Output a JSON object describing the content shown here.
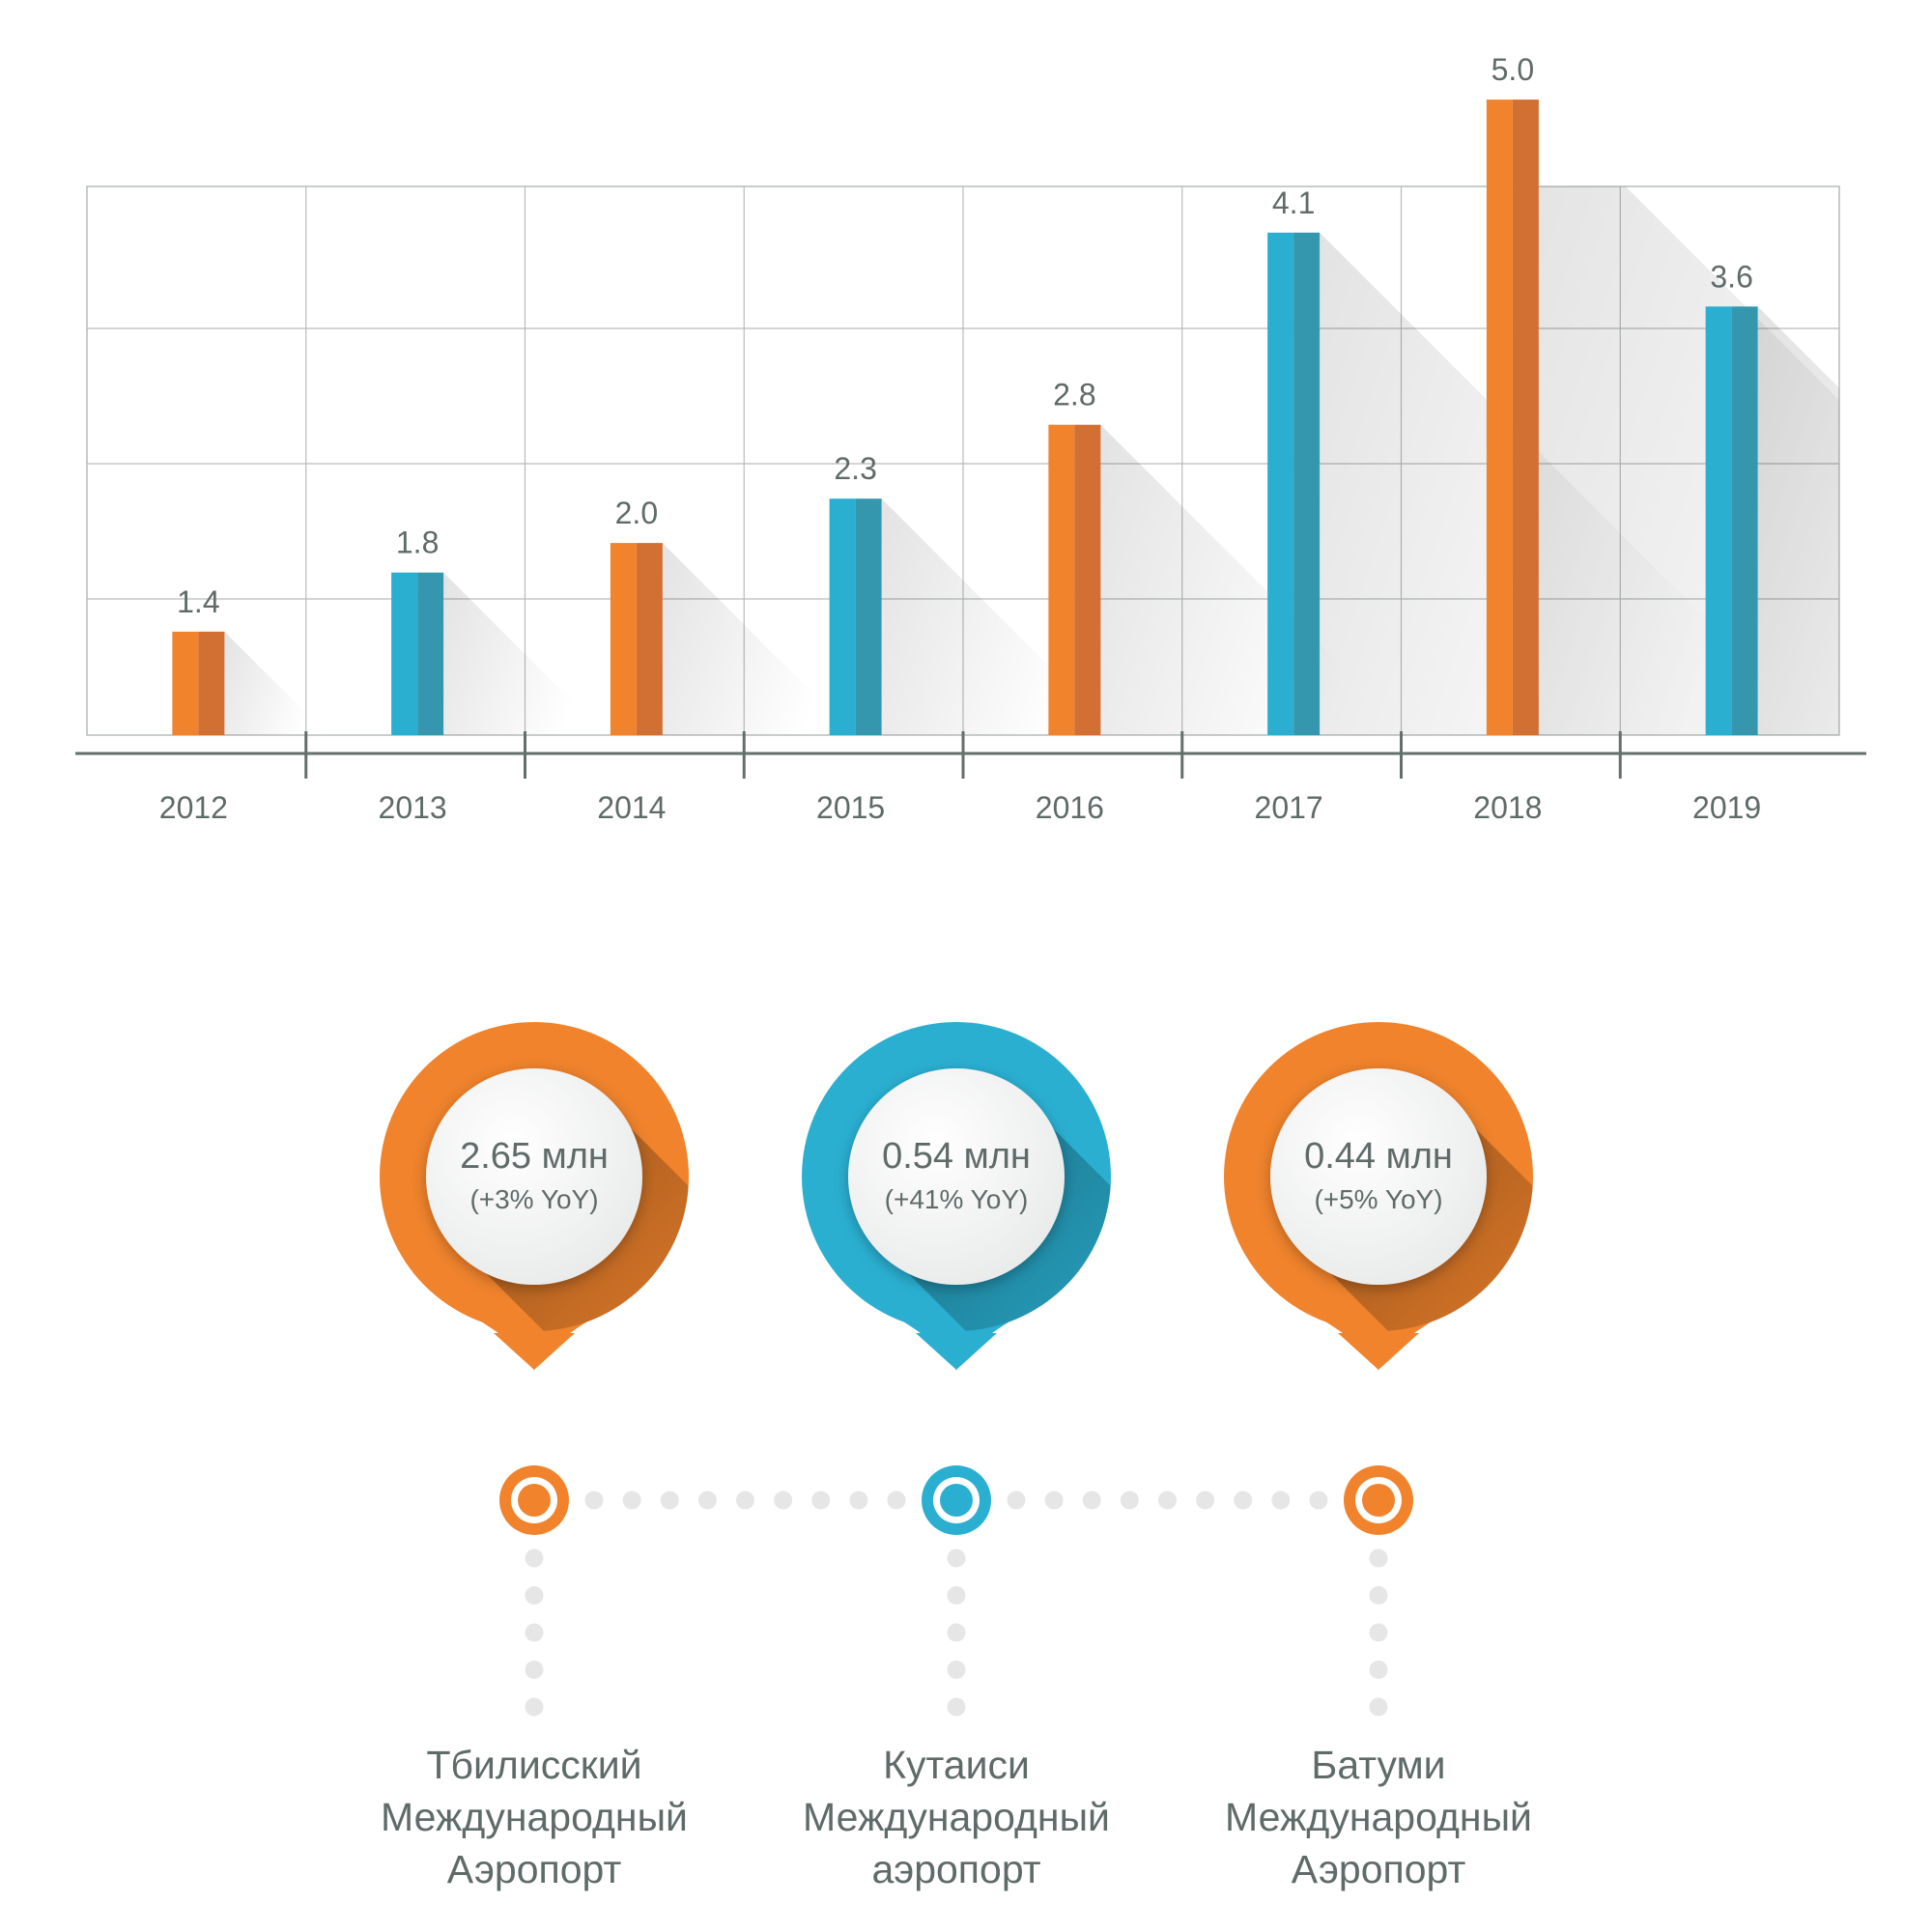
{
  "chart_data": {
    "type": "bar",
    "categories": [
      "2012",
      "2013",
      "2014",
      "2015",
      "2016",
      "2017",
      "2018",
      "2019"
    ],
    "values": [
      1.4,
      1.8,
      2.0,
      2.3,
      2.8,
      4.1,
      5.0,
      3.6
    ],
    "value_labels": [
      "1.4",
      "1.8",
      "2.0",
      "2.3",
      "2.8",
      "4.1",
      "5.0",
      "3.6"
    ],
    "bar_colors": [
      "orange",
      "blue",
      "orange",
      "blue",
      "orange",
      "blue",
      "orange",
      "blue"
    ],
    "title": "",
    "xlabel": "",
    "ylabel": "",
    "grid": true,
    "legend": "none"
  },
  "colors": {
    "orange": "#f0832c",
    "orange_dark": "#d26f33",
    "blue": "#2aafd1",
    "blue_dark": "#3597ae",
    "text": "#5f6b69",
    "grid": "#b7bcbb",
    "axis": "#646f6d",
    "dot": "#e6e6e6"
  },
  "airports": [
    {
      "value": "2.65 млн",
      "yoy": "(+3% YoY)",
      "color": "orange",
      "name_lines": [
        "Тбилисский",
        "Международный",
        "Аэропорт"
      ]
    },
    {
      "value": "0.54 млн",
      "yoy": "(+41% YoY)",
      "color": "blue",
      "name_lines": [
        "Кутаиси",
        "Международный",
        "аэропорт"
      ]
    },
    {
      "value": "0.44 млн",
      "yoy": "(+5% YoY)",
      "color": "orange",
      "name_lines": [
        "Батуми",
        "Международный",
        "Аэропорт"
      ]
    }
  ]
}
